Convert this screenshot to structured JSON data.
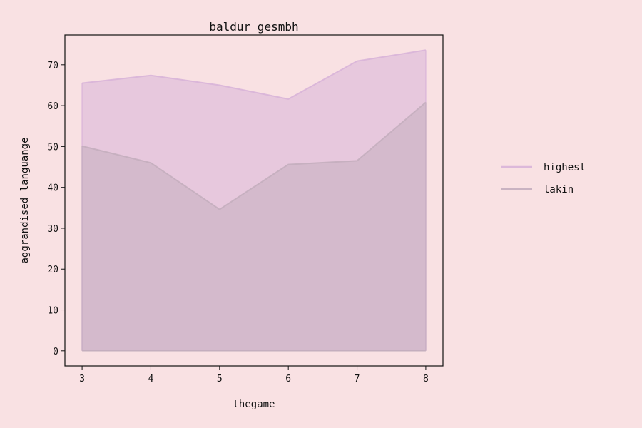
{
  "chart_data": {
    "type": "area",
    "title": "baldur gesmbh",
    "xlabel": "thegame",
    "ylabel": "aggrandised languange",
    "x": [
      3,
      4,
      5,
      6,
      7,
      8
    ],
    "xlim": [
      2.75,
      8.25
    ],
    "ylim": [
      -3.7,
      77.3
    ],
    "xticks": [
      3,
      4,
      5,
      6,
      7,
      8
    ],
    "yticks": [
      0,
      10,
      20,
      30,
      40,
      50,
      60,
      70
    ],
    "grid": false,
    "legend_position": "right",
    "series": [
      {
        "name": "highest",
        "values": [
          65.5,
          67.4,
          65.0,
          61.6,
          70.9,
          73.6
        ],
        "color": "#d8b4d8"
      },
      {
        "name": "lakin",
        "values": [
          50.1,
          46.0,
          34.6,
          45.6,
          46.5,
          60.8
        ],
        "color": "#c4aebe"
      }
    ]
  }
}
